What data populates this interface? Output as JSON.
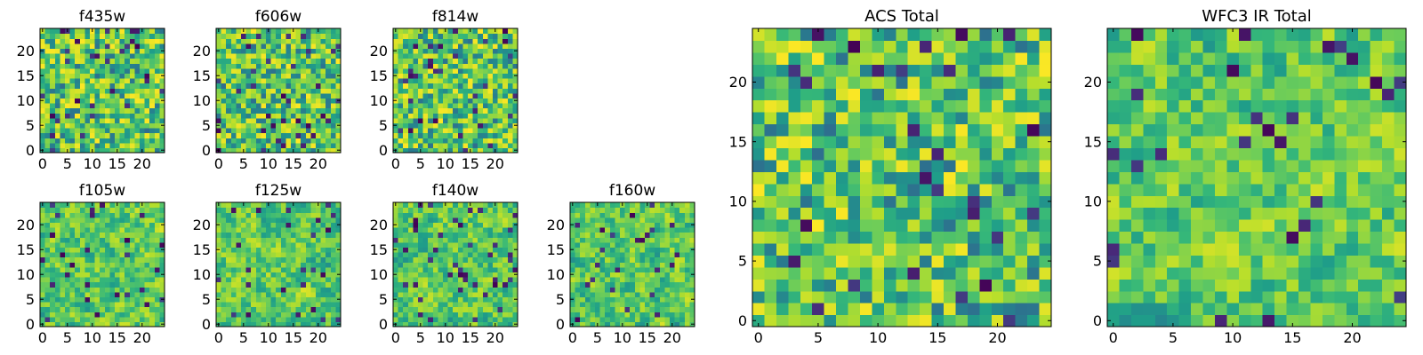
{
  "chart_data": [
    {
      "type": "heatmap",
      "title": "f435w",
      "xlim": [
        0,
        25
      ],
      "ylim": [
        0,
        25
      ],
      "xticks": [
        "0",
        "5",
        "10",
        "15",
        "20"
      ],
      "yticks": [
        "0",
        "5",
        "10",
        "15",
        "20"
      ],
      "colormap": "viridis",
      "seed": 11,
      "smooth": 0
    },
    {
      "type": "heatmap",
      "title": "f606w",
      "xlim": [
        0,
        25
      ],
      "ylim": [
        0,
        25
      ],
      "xticks": [
        "0",
        "5",
        "10",
        "15",
        "20"
      ],
      "yticks": [
        "0",
        "5",
        "10",
        "15",
        "20"
      ],
      "colormap": "viridis",
      "seed": 23,
      "smooth": 0
    },
    {
      "type": "heatmap",
      "title": "f814w",
      "xlim": [
        0,
        25
      ],
      "ylim": [
        0,
        25
      ],
      "xticks": [
        "0",
        "5",
        "10",
        "15",
        "20"
      ],
      "yticks": [
        "0",
        "5",
        "10",
        "15",
        "20"
      ],
      "colormap": "viridis",
      "seed": 37,
      "smooth": 0
    },
    {
      "type": "heatmap",
      "title": "f105w",
      "xlim": [
        0,
        25
      ],
      "ylim": [
        0,
        25
      ],
      "xticks": [
        "0",
        "5",
        "10",
        "15",
        "20"
      ],
      "yticks": [
        "0",
        "5",
        "10",
        "15",
        "20"
      ],
      "colormap": "viridis",
      "seed": 41,
      "smooth": 1
    },
    {
      "type": "heatmap",
      "title": "f125w",
      "xlim": [
        0,
        25
      ],
      "ylim": [
        0,
        25
      ],
      "xticks": [
        "0",
        "5",
        "10",
        "15",
        "20"
      ],
      "yticks": [
        "0",
        "5",
        "10",
        "15",
        "20"
      ],
      "colormap": "viridis",
      "seed": 53,
      "smooth": 1
    },
    {
      "type": "heatmap",
      "title": "f140w",
      "xlim": [
        0,
        25
      ],
      "ylim": [
        0,
        25
      ],
      "xticks": [
        "0",
        "5",
        "10",
        "15",
        "20"
      ],
      "yticks": [
        "0",
        "5",
        "10",
        "15",
        "20"
      ],
      "colormap": "viridis",
      "seed": 67,
      "smooth": 1
    },
    {
      "type": "heatmap",
      "title": "f160w",
      "xlim": [
        0,
        25
      ],
      "ylim": [
        0,
        25
      ],
      "xticks": [
        "0",
        "5",
        "10",
        "15",
        "20"
      ],
      "yticks": [
        "0",
        "5",
        "10",
        "15",
        "20"
      ],
      "colormap": "viridis",
      "seed": 79,
      "smooth": 1
    },
    {
      "type": "heatmap",
      "title": "ACS Total",
      "xlim": [
        0,
        25
      ],
      "ylim": [
        0,
        25
      ],
      "xticks": [
        "0",
        "5",
        "10",
        "15",
        "20"
      ],
      "yticks": [
        "0",
        "5",
        "10",
        "15",
        "20"
      ],
      "colormap": "viridis",
      "seed": 83,
      "smooth": 0
    },
    {
      "type": "heatmap",
      "title": "WFC3 IR Total",
      "xlim": [
        0,
        25
      ],
      "ylim": [
        0,
        25
      ],
      "xticks": [
        "0",
        "5",
        "10",
        "15",
        "20"
      ],
      "yticks": [
        "0",
        "5",
        "10",
        "15",
        "20"
      ],
      "colormap": "viridis",
      "seed": 97,
      "smooth": 1
    }
  ]
}
